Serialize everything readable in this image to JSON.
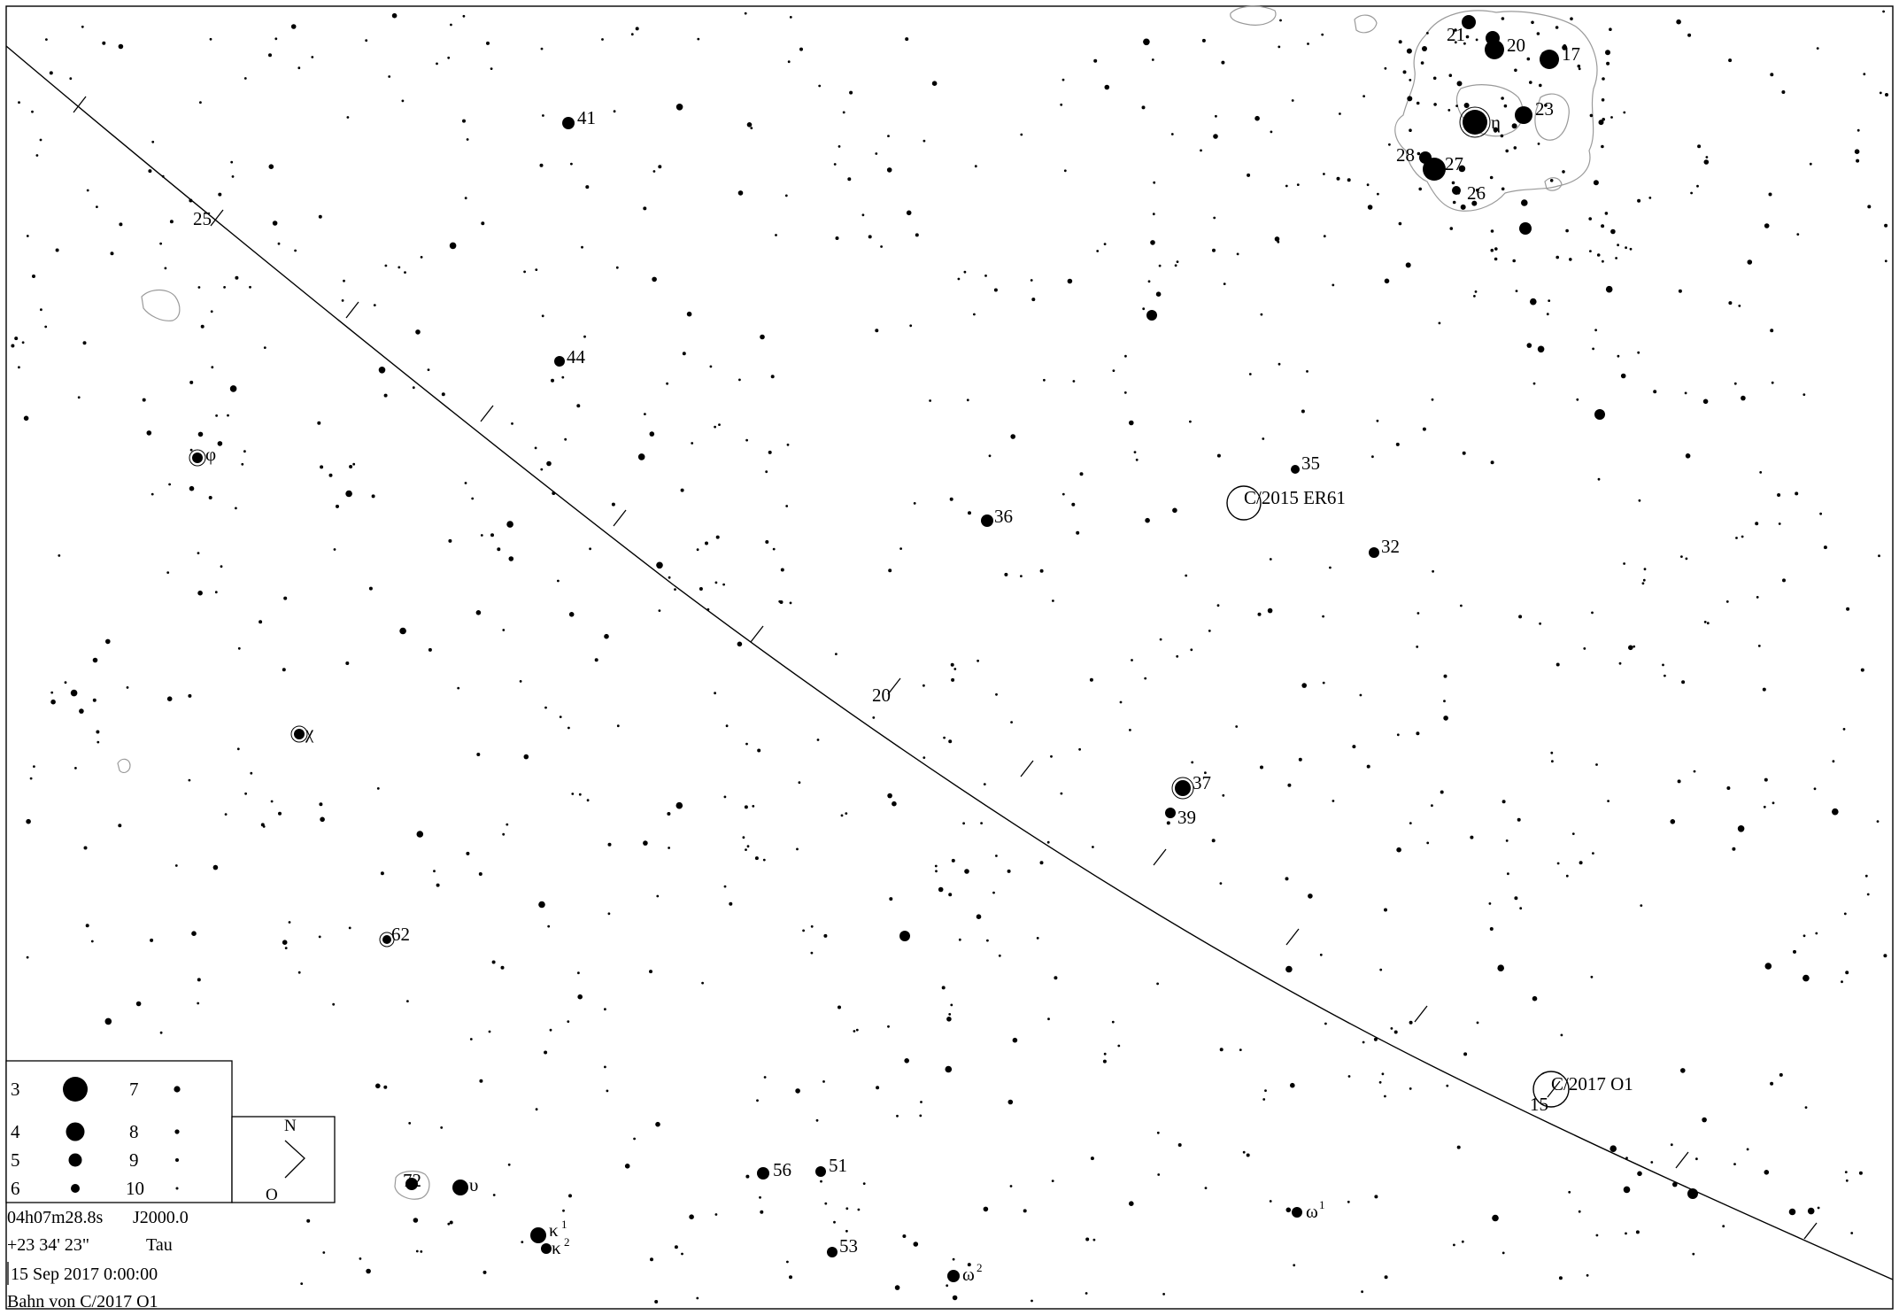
{
  "chart": {
    "constellation": "Tau",
    "info": {
      "ra": "04h07m28.8s",
      "epoch": "J2000.0",
      "dec": "+23 34' 23\"",
      "constellation": "Tau",
      "datetime": "15 Sep 2017  0:00:00",
      "caption": "Bahn von C/2017 O1"
    },
    "compass": {
      "north": "N",
      "east": "O"
    },
    "legend": {
      "magnitudes": [
        "3",
        "4",
        "5",
        "6",
        "7",
        "8",
        "9",
        "10"
      ]
    },
    "comets": [
      {
        "name": "C/2017 O1",
        "date_label": "15"
      },
      {
        "name": "C/2015 ER61"
      }
    ],
    "track_labels": [
      "25",
      "20",
      "15"
    ],
    "star_labels": [
      "41",
      "44",
      "36",
      "35",
      "32",
      "37",
      "39",
      "62",
      "72",
      "56",
      "51",
      "53",
      "21",
      "20",
      "17",
      "23",
      "28",
      "27",
      "26",
      "φ",
      "χ",
      "η",
      "υ",
      "κ",
      "κ",
      "ω",
      "ω",
      "1",
      "2",
      "1",
      "2"
    ]
  }
}
